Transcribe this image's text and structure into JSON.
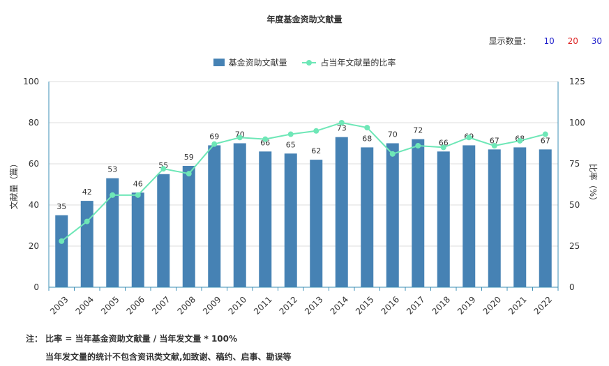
{
  "title": "年度基金资助文献量",
  "show_count": {
    "label": "显示数量：",
    "options": [
      {
        "label": "10",
        "color": "#2222cc"
      },
      {
        "label": "20",
        "color": "#dd2222"
      },
      {
        "label": "30",
        "color": "#2222cc"
      }
    ]
  },
  "legend": {
    "bar_label": "基金资助文献量",
    "line_label": "占当年文献量的比率"
  },
  "colors": {
    "bar": "#4682b4",
    "line": "#6ee7b7",
    "axis": "#3b8fb5",
    "grid": "#dddddd"
  },
  "chart_data": {
    "type": "bar",
    "title": "年度基金资助文献量",
    "categories": [
      "2003",
      "2004",
      "2005",
      "2006",
      "2007",
      "2008",
      "2009",
      "2010",
      "2011",
      "2012",
      "2013",
      "2014",
      "2015",
      "2016",
      "2017",
      "2018",
      "2019",
      "2020",
      "2021",
      "2022"
    ],
    "series": [
      {
        "name": "基金资助文献量",
        "type": "bar",
        "axis": "left",
        "values": [
          35,
          42,
          53,
          46,
          55,
          59,
          69,
          70,
          66,
          65,
          62,
          73,
          68,
          70,
          72,
          66,
          69,
          67,
          68,
          67
        ]
      },
      {
        "name": "占当年文献量的比率",
        "type": "line",
        "axis": "right",
        "values": [
          28,
          40,
          56,
          56,
          72,
          69,
          87,
          91,
          90,
          93,
          95,
          100,
          97,
          81,
          86,
          85,
          91,
          86,
          89,
          93
        ]
      }
    ],
    "ylabel": "文献量（篇）",
    "ylabel_right": "比率（%）",
    "ylim": [
      0,
      100
    ],
    "ylim_right": [
      0,
      125
    ],
    "yticks": [
      0,
      20,
      40,
      60,
      80,
      100
    ],
    "yticks_right": [
      0,
      25,
      50,
      75,
      100,
      125
    ],
    "grid": true,
    "legend_position": "top-center"
  },
  "notes": [
    "注： 比率 = 当年基金资助文献量 / 当年发文量 * 100%",
    "当年发文量的统计不包含资讯类文献,如致谢、稿约、启事、勘误等"
  ]
}
